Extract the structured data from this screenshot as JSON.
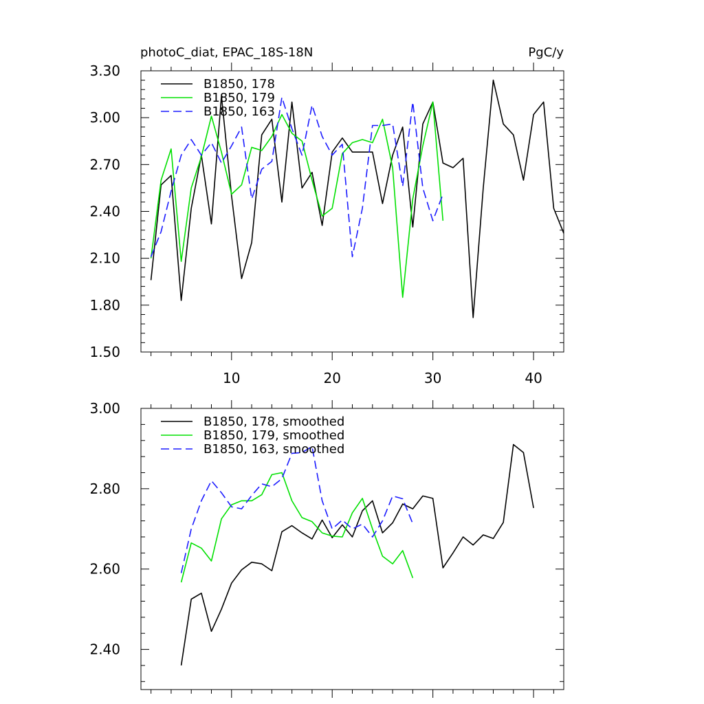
{
  "chart_data": [
    {
      "type": "line",
      "title": "photoC_diat, EPAC_18S-18N",
      "units": "PgC/y",
      "ylim": [
        1.5,
        3.3
      ],
      "yticks": [
        1.5,
        1.8,
        2.1,
        2.4,
        2.7,
        3.0,
        3.3
      ],
      "ytick_labels": [
        "1.50",
        "1.80",
        "2.10",
        "2.40",
        "2.70",
        "3.00",
        "3.30"
      ],
      "xlim": [
        1,
        43
      ],
      "xticks": [
        10,
        20,
        30,
        40
      ],
      "xtick_labels": [
        "10",
        "20",
        "30",
        "40"
      ],
      "legend_position": "top-left",
      "series": [
        {
          "name": "B1850, 178",
          "color": "#000000",
          "dash": "solid",
          "x": [
            2,
            3,
            4,
            5,
            6,
            7,
            8,
            9,
            10,
            11,
            12,
            13,
            14,
            15,
            16,
            17,
            18,
            19,
            20,
            21,
            22,
            23,
            24,
            25,
            26,
            27,
            28,
            29,
            30,
            31,
            32,
            33,
            34,
            35,
            36,
            37,
            38,
            39,
            40,
            41,
            42,
            43
          ],
          "values": [
            1.96,
            2.57,
            2.63,
            1.83,
            2.42,
            2.76,
            2.32,
            3.14,
            2.5,
            1.97,
            2.2,
            2.89,
            2.99,
            2.46,
            3.1,
            2.55,
            2.65,
            2.31,
            2.78,
            2.87,
            2.78,
            2.78,
            2.78,
            2.45,
            2.76,
            2.94,
            2.3,
            2.96,
            3.1,
            2.71,
            2.68,
            2.74,
            1.72,
            2.55,
            3.24,
            2.96,
            2.89,
            2.6,
            3.02,
            3.1,
            2.42,
            2.26
          ]
        },
        {
          "name": "B1850, 179",
          "color": "#00e000",
          "dash": "solid",
          "x": [
            2,
            3,
            4,
            5,
            6,
            7,
            8,
            9,
            10,
            11,
            12,
            13,
            14,
            15,
            16,
            17,
            18,
            19,
            20,
            21,
            22,
            23,
            24,
            25,
            26,
            27,
            28,
            29,
            30,
            31
          ],
          "values": [
            2.1,
            2.6,
            2.8,
            2.08,
            2.55,
            2.75,
            3.01,
            2.78,
            2.51,
            2.57,
            2.81,
            2.79,
            2.88,
            3.02,
            2.9,
            2.85,
            2.6,
            2.37,
            2.42,
            2.77,
            2.84,
            2.86,
            2.84,
            2.99,
            2.68,
            1.85,
            2.48,
            2.82,
            3.1,
            2.34
          ]
        },
        {
          "name": "B1850, 163",
          "color": "#1a1aff",
          "dash": "dashed",
          "x": [
            2,
            3,
            4,
            5,
            6,
            7,
            8,
            9,
            10,
            11,
            12,
            13,
            14,
            15,
            16,
            17,
            18,
            19,
            20,
            21,
            22,
            23,
            24,
            25,
            26,
            27,
            28,
            29,
            30,
            31
          ],
          "values": [
            2.11,
            2.27,
            2.53,
            2.76,
            2.86,
            2.76,
            2.84,
            2.71,
            2.82,
            2.94,
            2.48,
            2.67,
            2.72,
            3.13,
            2.93,
            2.76,
            3.08,
            2.88,
            2.76,
            2.83,
            2.11,
            2.42,
            2.95,
            2.95,
            2.96,
            2.56,
            3.1,
            2.55,
            2.34,
            2.51
          ]
        }
      ]
    },
    {
      "type": "line",
      "ylim": [
        2.3,
        3.0
      ],
      "yticks": [
        2.4,
        2.6,
        2.8,
        3.0
      ],
      "ytick_labels": [
        "2.40",
        "2.60",
        "2.80",
        "3.00"
      ],
      "xlim": [
        1,
        43
      ],
      "xticks": [
        10,
        20,
        30,
        40
      ],
      "legend_position": "top-left",
      "series": [
        {
          "name": "B1850, 178, smoothed",
          "color": "#000000",
          "dash": "solid",
          "x": [
            5,
            6,
            7,
            8,
            9,
            10,
            11,
            12,
            13,
            14,
            15,
            16,
            17,
            18,
            19,
            20,
            21,
            22,
            23,
            24,
            25,
            26,
            27,
            28,
            29,
            30,
            31,
            32,
            33,
            34,
            35,
            36,
            37,
            38,
            39,
            40
          ],
          "values": [
            2.36,
            2.525,
            2.54,
            2.445,
            2.5,
            2.565,
            2.598,
            2.617,
            2.613,
            2.596,
            2.693,
            2.708,
            2.69,
            2.675,
            2.722,
            2.678,
            2.71,
            2.68,
            2.745,
            2.77,
            2.69,
            2.715,
            2.762,
            2.75,
            2.782,
            2.776,
            2.603,
            2.64,
            2.68,
            2.66,
            2.685,
            2.676,
            2.716,
            2.91,
            2.89,
            2.752
          ]
        },
        {
          "name": "B1850, 179, smoothed",
          "color": "#00e000",
          "dash": "solid",
          "x": [
            5,
            6,
            7,
            8,
            9,
            10,
            11,
            12,
            13,
            14,
            15,
            16,
            17,
            18,
            19,
            20,
            21,
            22,
            23,
            24,
            25,
            26,
            27,
            28
          ],
          "values": [
            2.567,
            2.665,
            2.652,
            2.62,
            2.725,
            2.76,
            2.77,
            2.77,
            2.785,
            2.835,
            2.84,
            2.77,
            2.728,
            2.718,
            2.69,
            2.682,
            2.68,
            2.74,
            2.776,
            2.7,
            2.632,
            2.613,
            2.646,
            2.578
          ]
        },
        {
          "name": "B1850, 163, smoothed",
          "color": "#1a1aff",
          "dash": "dashed",
          "x": [
            5,
            6,
            7,
            8,
            9,
            10,
            11,
            12,
            13,
            14,
            15,
            16,
            17,
            18,
            19,
            20,
            21,
            22,
            23,
            24,
            25,
            26,
            27,
            28
          ],
          "values": [
            2.59,
            2.7,
            2.77,
            2.82,
            2.79,
            2.755,
            2.75,
            2.783,
            2.812,
            2.805,
            2.825,
            2.888,
            2.89,
            2.905,
            2.77,
            2.7,
            2.722,
            2.7,
            2.712,
            2.68,
            2.72,
            2.782,
            2.775,
            2.713
          ]
        }
      ]
    }
  ]
}
